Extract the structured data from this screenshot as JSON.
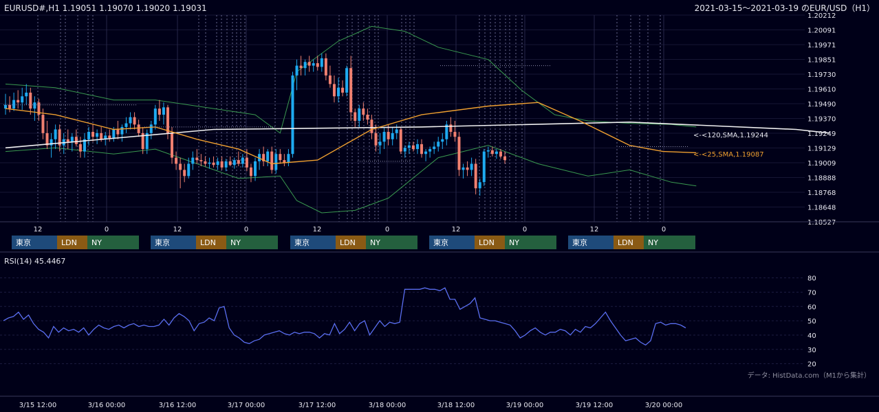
{
  "header": {
    "symbol_ohlc": "EURUSD#,H1 1.19051 1.19070 1.19020 1.19031",
    "date_range": "2021-03-15～2021-03-19 のEUR/USD（H1）"
  },
  "colors": {
    "background": "#000018",
    "bull": "#1eaaf0",
    "bear": "#f08070",
    "sma120": "#f0f0f0",
    "sma25": "#f0a030",
    "bollinger": "#3a9a50",
    "rsi": "#5a6ef0",
    "tokyo": "#1e4a7a",
    "london": "#8a5a14",
    "newyork": "#24603e"
  },
  "chart_data": [
    {
      "type": "candlestick",
      "title": "EURUSD#,H1 1.19051 1.19070 1.19020 1.19031",
      "ylim": [
        1.18527,
        1.20212
      ],
      "y_ticks": [
        "1.20212",
        "1.20091",
        "1.19971",
        "1.19851",
        "1.19730",
        "1.19610",
        "1.19490",
        "1.19370",
        "1.19249",
        "1.19129",
        "1.19009",
        "1.18888",
        "1.18768",
        "1.18648",
        "1.18527"
      ],
      "x_ticks": [
        "12",
        "0",
        "12",
        "0",
        "12",
        "0",
        "12",
        "0",
        "12",
        "0"
      ],
      "candles": [
        [
          1.1945,
          1.1957,
          1.194,
          1.1948
        ],
        [
          1.1948,
          1.1955,
          1.1942,
          1.1945
        ],
        [
          1.1945,
          1.1958,
          1.1943,
          1.1952
        ],
        [
          1.1952,
          1.196,
          1.1945,
          1.195
        ],
        [
          1.195,
          1.1962,
          1.1944,
          1.1955
        ],
        [
          1.1955,
          1.1965,
          1.1948,
          1.1958
        ],
        [
          1.1958,
          1.1962,
          1.194,
          1.1945
        ],
        [
          1.1945,
          1.1955,
          1.1935,
          1.195
        ],
        [
          1.195,
          1.1953,
          1.1935,
          1.194
        ],
        [
          1.194,
          1.1945,
          1.192,
          1.1925
        ],
        [
          1.1925,
          1.1935,
          1.1912,
          1.1915
        ],
        [
          1.1915,
          1.1925,
          1.1905,
          1.192
        ],
        [
          1.192,
          1.1932,
          1.1912,
          1.1928
        ],
        [
          1.1928,
          1.1932,
          1.191,
          1.1915
        ],
        [
          1.1915,
          1.1925,
          1.1908,
          1.192
        ],
        [
          1.192,
          1.1928,
          1.1912,
          1.1918
        ],
        [
          1.1918,
          1.1925,
          1.191,
          1.1922
        ],
        [
          1.1922,
          1.1928,
          1.1914,
          1.1916
        ],
        [
          1.1916,
          1.1922,
          1.1905,
          1.191
        ],
        [
          1.191,
          1.1925,
          1.1905,
          1.192
        ],
        [
          1.192,
          1.193,
          1.1915,
          1.1926
        ],
        [
          1.1926,
          1.1932,
          1.1918,
          1.1922
        ],
        [
          1.1922,
          1.1928,
          1.1916,
          1.1925
        ],
        [
          1.1925,
          1.193,
          1.1918,
          1.192
        ],
        [
          1.192,
          1.1926,
          1.1915,
          1.1923
        ],
        [
          1.1923,
          1.1928,
          1.1918,
          1.1921
        ],
        [
          1.1921,
          1.193,
          1.1918,
          1.1928
        ],
        [
          1.1928,
          1.1935,
          1.192,
          1.1924
        ],
        [
          1.1924,
          1.1932,
          1.1918,
          1.193
        ],
        [
          1.193,
          1.1938,
          1.1925,
          1.1933
        ],
        [
          1.1933,
          1.1942,
          1.1928,
          1.1938
        ],
        [
          1.1938,
          1.1942,
          1.1928,
          1.1932
        ],
        [
          1.1932,
          1.1936,
          1.1922,
          1.1925
        ],
        [
          1.1925,
          1.193,
          1.1908,
          1.1912
        ],
        [
          1.1912,
          1.1928,
          1.1908,
          1.1925
        ],
        [
          1.1925,
          1.1935,
          1.192,
          1.1932
        ],
        [
          1.1932,
          1.1948,
          1.1928,
          1.1945
        ],
        [
          1.1945,
          1.1952,
          1.1935,
          1.194
        ],
        [
          1.194,
          1.195,
          1.1932,
          1.1946
        ],
        [
          1.1946,
          1.1948,
          1.192,
          1.1925
        ],
        [
          1.1925,
          1.193,
          1.19,
          1.1905
        ],
        [
          1.1905,
          1.191,
          1.1895,
          1.19
        ],
        [
          1.19,
          1.1905,
          1.188,
          1.1895
        ],
        [
          1.1895,
          1.19,
          1.1885,
          1.189
        ],
        [
          1.189,
          1.1905,
          1.1888,
          1.19
        ],
        [
          1.19,
          1.191,
          1.1895,
          1.1905
        ],
        [
          1.1905,
          1.1912,
          1.19,
          1.1903
        ],
        [
          1.1903,
          1.1908,
          1.1898,
          1.1902
        ],
        [
          1.1902,
          1.1906,
          1.1898,
          1.19
        ],
        [
          1.19,
          1.1905,
          1.1896,
          1.1901
        ],
        [
          1.1901,
          1.1906,
          1.1897,
          1.1899
        ],
        [
          1.1899,
          1.1905,
          1.1895,
          1.1902
        ],
        [
          1.1902,
          1.1906,
          1.1895,
          1.1897
        ],
        [
          1.1897,
          1.1904,
          1.1894,
          1.1902
        ],
        [
          1.1902,
          1.1906,
          1.1898,
          1.1899
        ],
        [
          1.1899,
          1.1905,
          1.1896,
          1.1903
        ],
        [
          1.1903,
          1.191,
          1.1898,
          1.19
        ],
        [
          1.19,
          1.1908,
          1.1897,
          1.1905
        ],
        [
          1.1905,
          1.1912,
          1.1894,
          1.1897
        ],
        [
          1.1897,
          1.19,
          1.1885,
          1.189
        ],
        [
          1.189,
          1.1905,
          1.1886,
          1.1902
        ],
        [
          1.1902,
          1.1912,
          1.1895,
          1.1908
        ],
        [
          1.1908,
          1.1914,
          1.1898,
          1.1902
        ],
        [
          1.1902,
          1.1912,
          1.1898,
          1.191
        ],
        [
          1.191,
          1.1914,
          1.1892,
          1.1895
        ],
        [
          1.1895,
          1.1912,
          1.1892,
          1.1908
        ],
        [
          1.1908,
          1.1912,
          1.19,
          1.1903
        ],
        [
          1.1903,
          1.1908,
          1.1898,
          1.1901
        ],
        [
          1.1901,
          1.1912,
          1.1898,
          1.1908
        ],
        [
          1.1908,
          1.1975,
          1.1905,
          1.1972
        ],
        [
          1.1972,
          1.1985,
          1.196,
          1.198
        ],
        [
          1.198,
          1.1988,
          1.1972,
          1.1978
        ],
        [
          1.1978,
          1.1985,
          1.1972,
          1.1983
        ],
        [
          1.1983,
          1.1988,
          1.1975,
          1.198
        ],
        [
          1.198,
          1.1985,
          1.1975,
          1.1982
        ],
        [
          1.1982,
          1.1988,
          1.1976,
          1.1979
        ],
        [
          1.1979,
          1.199,
          1.1975,
          1.1986
        ],
        [
          1.1986,
          1.199,
          1.1968,
          1.1972
        ],
        [
          1.1972,
          1.198,
          1.1962,
          1.1965
        ],
        [
          1.1965,
          1.1972,
          1.195,
          1.1955
        ],
        [
          1.1955,
          1.197,
          1.195,
          1.1962
        ],
        [
          1.1962,
          1.1968,
          1.1955,
          1.1958
        ],
        [
          1.1958,
          1.198,
          1.1955,
          1.1978
        ],
        [
          1.1978,
          1.1988,
          1.1935,
          1.1942
        ],
        [
          1.1942,
          1.1945,
          1.193,
          1.1935
        ],
        [
          1.1935,
          1.1948,
          1.193,
          1.1945
        ],
        [
          1.1945,
          1.195,
          1.1935,
          1.194
        ],
        [
          1.194,
          1.1945,
          1.1932,
          1.1936
        ],
        [
          1.1936,
          1.194,
          1.192,
          1.1925
        ],
        [
          1.1925,
          1.1932,
          1.191,
          1.1915
        ],
        [
          1.1915,
          1.1925,
          1.1908,
          1.1918
        ],
        [
          1.1918,
          1.193,
          1.1912,
          1.1926
        ],
        [
          1.1926,
          1.1932,
          1.1915,
          1.192
        ],
        [
          1.192,
          1.193,
          1.1915,
          1.1925
        ],
        [
          1.1925,
          1.1932,
          1.192,
          1.1928
        ],
        [
          1.1928,
          1.193,
          1.1908,
          1.191
        ],
        [
          1.191,
          1.1915,
          1.1905,
          1.1913
        ],
        [
          1.1913,
          1.1918,
          1.1908,
          1.1915
        ],
        [
          1.1915,
          1.1918,
          1.191,
          1.1912
        ],
        [
          1.1912,
          1.192,
          1.1908,
          1.1916
        ],
        [
          1.1916,
          1.192,
          1.1905,
          1.1908
        ],
        [
          1.1908,
          1.1912,
          1.1902,
          1.191
        ],
        [
          1.191,
          1.1914,
          1.1905,
          1.1912
        ],
        [
          1.1912,
          1.1918,
          1.1908,
          1.1914
        ],
        [
          1.1914,
          1.1922,
          1.191,
          1.1918
        ],
        [
          1.1918,
          1.1925,
          1.1912,
          1.192
        ],
        [
          1.192,
          1.1935,
          1.1915,
          1.1932
        ],
        [
          1.1932,
          1.1938,
          1.1922,
          1.1926
        ],
        [
          1.1926,
          1.1935,
          1.1918,
          1.1922
        ],
        [
          1.1922,
          1.1926,
          1.189,
          1.1895
        ],
        [
          1.1895,
          1.19,
          1.1888,
          1.1897
        ],
        [
          1.1897,
          1.1902,
          1.189,
          1.1895
        ],
        [
          1.1895,
          1.1905,
          1.189,
          1.19
        ],
        [
          1.19,
          1.1904,
          1.1875,
          1.188
        ],
        [
          1.188,
          1.1888,
          1.1874,
          1.1885
        ],
        [
          1.1885,
          1.1912,
          1.1882,
          1.191
        ],
        [
          1.191,
          1.1914,
          1.1905,
          1.1911
        ],
        [
          1.1911,
          1.1914,
          1.1906,
          1.1908
        ],
        [
          1.1908,
          1.1912,
          1.1904,
          1.191
        ],
        [
          1.191,
          1.1912,
          1.1904,
          1.1906
        ],
        [
          1.1906,
          1.191,
          1.19,
          1.1903
        ]
      ],
      "sma120": {
        "label": "<-<120,SMA,1.19244",
        "points": [
          [
            0,
            1.1913
          ],
          [
            50,
            1.1928
          ],
          [
            100,
            1.193
          ],
          [
            150,
            1.1934
          ],
          [
            190,
            1.1928
          ],
          [
            198,
            1.1925
          ]
        ]
      },
      "sma25": {
        "label": "<-<25,SMA,1.19087",
        "points": [
          [
            0,
            1.1945
          ],
          [
            12,
            1.194
          ],
          [
            26,
            1.1928
          ],
          [
            36,
            1.193
          ],
          [
            46,
            1.192
          ],
          [
            56,
            1.1912
          ],
          [
            64,
            1.19
          ],
          [
            75,
            1.1903
          ],
          [
            88,
            1.1928
          ],
          [
            100,
            1.194
          ],
          [
            116,
            1.1947
          ],
          [
            128,
            1.195
          ],
          [
            138,
            1.1935
          ],
          [
            150,
            1.1915
          ],
          [
            158,
            1.191
          ],
          [
            166,
            1.1909
          ]
        ]
      },
      "bollinger_upper": [
        [
          0,
          1.1965
        ],
        [
          12,
          1.1962
        ],
        [
          26,
          1.1952
        ],
        [
          36,
          1.1952
        ],
        [
          50,
          1.1945
        ],
        [
          60,
          1.194
        ],
        [
          66,
          1.1925
        ],
        [
          70,
          1.1975
        ],
        [
          80,
          1.2
        ],
        [
          88,
          1.2012
        ],
        [
          96,
          1.2008
        ],
        [
          104,
          1.1995
        ],
        [
          116,
          1.1985
        ],
        [
          124,
          1.196
        ],
        [
          132,
          1.194
        ],
        [
          140,
          1.1935
        ],
        [
          150,
          1.1933
        ],
        [
          160,
          1.1932
        ],
        [
          166,
          1.193
        ]
      ],
      "bollinger_lower": [
        [
          0,
          1.191
        ],
        [
          12,
          1.1913
        ],
        [
          26,
          1.1908
        ],
        [
          36,
          1.1912
        ],
        [
          46,
          1.19
        ],
        [
          56,
          1.1888
        ],
        [
          66,
          1.189
        ],
        [
          70,
          1.187
        ],
        [
          76,
          1.186
        ],
        [
          84,
          1.1862
        ],
        [
          92,
          1.1872
        ],
        [
          104,
          1.1905
        ],
        [
          116,
          1.1915
        ],
        [
          128,
          1.19
        ],
        [
          140,
          1.189
        ],
        [
          150,
          1.1895
        ],
        [
          160,
          1.1885
        ],
        [
          166,
          1.1882
        ]
      ],
      "sessions": [
        {
          "tokyo": "東京",
          "london": "LDN",
          "newyork": "NY"
        },
        {
          "tokyo": "東京",
          "london": "LDN",
          "newyork": "NY"
        },
        {
          "tokyo": "東京",
          "london": "LDN",
          "newyork": "NY"
        },
        {
          "tokyo": "東京",
          "london": "LDN",
          "newyork": "NY"
        },
        {
          "tokyo": "東京",
          "london": "LDN",
          "newyork": "NY"
        }
      ]
    },
    {
      "type": "line",
      "title": "RSI(14) 45.4467",
      "ylim": [
        15,
        88
      ],
      "y_ticks": [
        80,
        70,
        60,
        50,
        40,
        30,
        20
      ],
      "series": [
        {
          "values": [
            50,
            52,
            53,
            56,
            51,
            54,
            48,
            44,
            42,
            38,
            46,
            42,
            45,
            43,
            44,
            42,
            45,
            40,
            44,
            47,
            45,
            44,
            46,
            47,
            45,
            47,
            48,
            46,
            47,
            46,
            46,
            47,
            51,
            47,
            52,
            55,
            53,
            50,
            43,
            48,
            49,
            52,
            50,
            59,
            60,
            45,
            40,
            38,
            35,
            34,
            36,
            37,
            40,
            41,
            42,
            43,
            41,
            40,
            42,
            41,
            42,
            42,
            41,
            38,
            41,
            40,
            48,
            41,
            44,
            49,
            43,
            48,
            50,
            40,
            45,
            50,
            46,
            49,
            48,
            49,
            72,
            72,
            72,
            72,
            73,
            72,
            72,
            71,
            73,
            65,
            65,
            58,
            60,
            62,
            66,
            52,
            51,
            50,
            50,
            49,
            48,
            47,
            43,
            38,
            40,
            43,
            45,
            42,
            40,
            42,
            42,
            44,
            43,
            40,
            44,
            42,
            46,
            45,
            48,
            52,
            56,
            50,
            45,
            40,
            36,
            37,
            38,
            35,
            33,
            36,
            48,
            49,
            47,
            48,
            48,
            47,
            45
          ]
        }
      ]
    }
  ],
  "x_axis": {
    "date_labels": [
      "3/15 12:00",
      "3/16 00:00",
      "3/16 12:00",
      "3/17 00:00",
      "3/17 12:00",
      "3/18 00:00",
      "3/18 12:00",
      "3/19 00:00",
      "3/19 12:00",
      "3/20 00:00"
    ]
  },
  "footer": {
    "credit": "データ: HistData.com（M1から集計）"
  }
}
